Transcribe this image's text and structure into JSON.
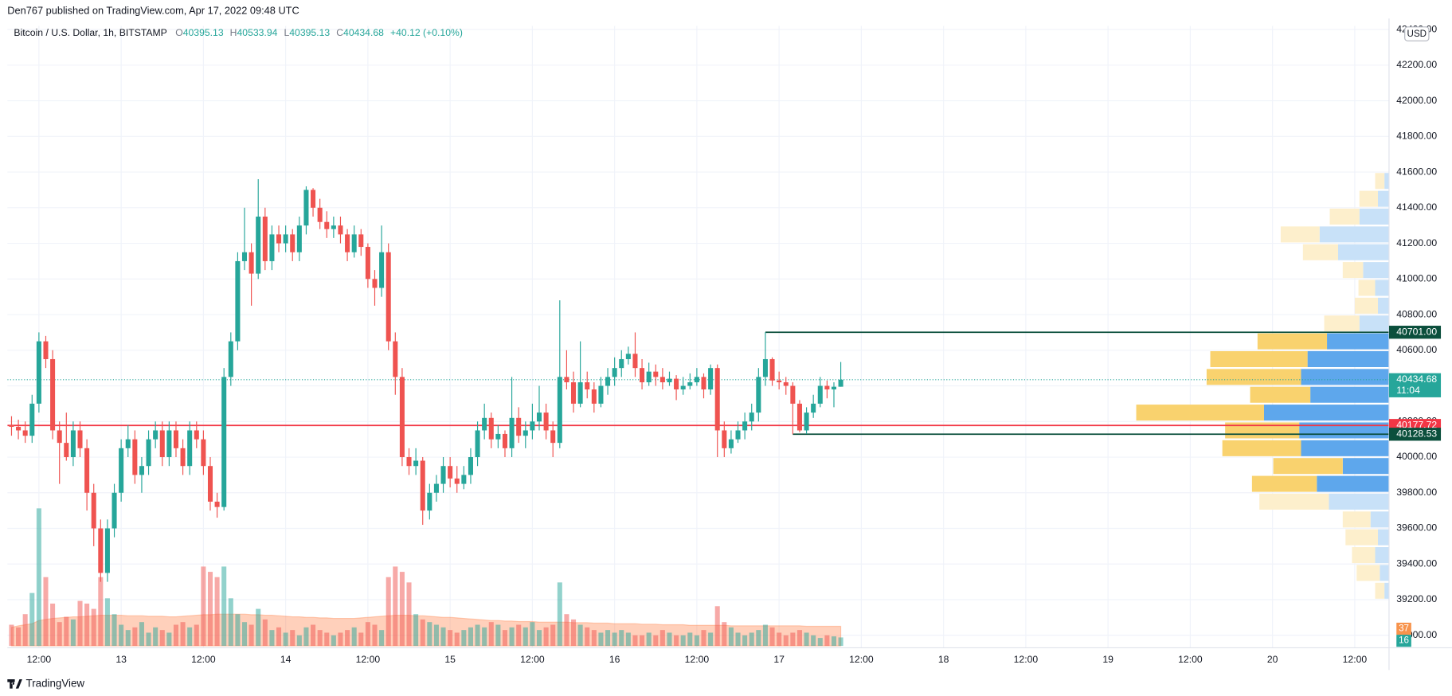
{
  "header": {
    "publisher": "Den767 published on TradingView.com, Apr 17, 2022 09:48 UTC"
  },
  "chart_data": {
    "type": "candlestick",
    "title": "Bitcoin / U.S. Dollar, 1h, BITSTAMP",
    "ohlc_labels": [
      "O",
      "H",
      "L",
      "C"
    ],
    "change": "+40.12 (+0.10%)",
    "currency": "USD",
    "countdown": "11:04",
    "up_color": "#26a69a",
    "down_color": "#ef5350",
    "grid": true,
    "xlim": [
      -0.6,
      201
    ],
    "xticks": [
      {
        "value": 4,
        "label": "12:00"
      },
      {
        "value": 16,
        "label": "13"
      },
      {
        "value": 28,
        "label": "12:00"
      },
      {
        "value": 40,
        "label": "14"
      },
      {
        "value": 52,
        "label": "12:00"
      },
      {
        "value": 64,
        "label": "15"
      },
      {
        "value": 76,
        "label": "12:00"
      },
      {
        "value": 88,
        "label": "16"
      },
      {
        "value": 100,
        "label": "12:00"
      },
      {
        "value": 112,
        "label": "17"
      },
      {
        "value": 124,
        "label": "12:00"
      },
      {
        "value": 136,
        "label": "18"
      },
      {
        "value": 148,
        "label": "12:00"
      },
      {
        "value": 160,
        "label": "19"
      },
      {
        "value": 172,
        "label": "12:00"
      },
      {
        "value": 184,
        "label": "20"
      },
      {
        "value": 196,
        "label": "12:00"
      }
    ],
    "ylim": [
      38930,
      42420
    ],
    "yticks": [
      {
        "value": 39000,
        "label": "39000.00"
      },
      {
        "value": 39200,
        "label": "39200.00"
      },
      {
        "value": 39400,
        "label": "39400.00"
      },
      {
        "value": 39600,
        "label": "39600.00"
      },
      {
        "value": 39800,
        "label": "39800.00"
      },
      {
        "value": 40000,
        "label": "40000.00"
      },
      {
        "value": 40200,
        "label": "40200.00"
      },
      {
        "value": 40400,
        "label": "40400.00"
      },
      {
        "value": 40600,
        "label": "40600.00"
      },
      {
        "value": 40800,
        "label": "40800.00"
      },
      {
        "value": 41000,
        "label": "41000.00"
      },
      {
        "value": 41200,
        "label": "41200.00"
      },
      {
        "value": 41400,
        "label": "41400.00"
      },
      {
        "value": 41600,
        "label": "41600.00"
      },
      {
        "value": 41800,
        "label": "41800.00"
      },
      {
        "value": 42000,
        "label": "42000.00"
      },
      {
        "value": 42200,
        "label": "42200.00"
      },
      {
        "value": 42400,
        "label": "42400.00"
      }
    ],
    "ohlc": [
      [
        40180,
        40230,
        40120,
        40170
      ],
      [
        40170,
        40210,
        40100,
        40150
      ],
      [
        40150,
        40200,
        40080,
        40120
      ],
      [
        40120,
        40350,
        40080,
        40300
      ],
      [
        40300,
        40700,
        40250,
        40650
      ],
      [
        40650,
        40680,
        40500,
        40550
      ],
      [
        40550,
        40600,
        40100,
        40150
      ],
      [
        40150,
        40200,
        39850,
        40080
      ],
      [
        40080,
        40250,
        39980,
        40000
      ],
      [
        40000,
        40200,
        39950,
        40150
      ],
      [
        40150,
        40200,
        40000,
        40050
      ],
      [
        40050,
        40100,
        39700,
        39800
      ],
      [
        39800,
        39850,
        39500,
        39600
      ],
      [
        39600,
        39650,
        39300,
        39350
      ],
      [
        39350,
        39650,
        39300,
        39600
      ],
      [
        39600,
        39850,
        39550,
        39800
      ],
      [
        39800,
        40100,
        39750,
        40050
      ],
      [
        40050,
        40180,
        40000,
        40100
      ],
      [
        40100,
        40150,
        39850,
        39900
      ],
      [
        39900,
        40000,
        39800,
        39950
      ],
      [
        39950,
        40150,
        39900,
        40100
      ],
      [
        40100,
        40200,
        40050,
        40150
      ],
      [
        40150,
        40200,
        39950,
        40000
      ],
      [
        40000,
        40200,
        39950,
        40150
      ],
      [
        40150,
        40200,
        40000,
        40050
      ],
      [
        40050,
        40100,
        39900,
        39950
      ],
      [
        39950,
        40200,
        39900,
        40150
      ],
      [
        40150,
        40200,
        40050,
        40100
      ],
      [
        40100,
        40150,
        39900,
        39950
      ],
      [
        39950,
        40000,
        39700,
        39750
      ],
      [
        39750,
        39800,
        39660,
        39720
      ],
      [
        39720,
        40500,
        39700,
        40450
      ],
      [
        40450,
        40700,
        40400,
        40650
      ],
      [
        40650,
        41150,
        40600,
        41100
      ],
      [
        41100,
        41400,
        41050,
        41150
      ],
      [
        41150,
        41200,
        40850,
        41030
      ],
      [
        41030,
        41560,
        41000,
        41350
      ],
      [
        41350,
        41400,
        41050,
        41100
      ],
      [
        41100,
        41300,
        41050,
        41250
      ],
      [
        41250,
        41300,
        41150,
        41200
      ],
      [
        41200,
        41300,
        41150,
        41250
      ],
      [
        41250,
        41280,
        41100,
        41150
      ],
      [
        41150,
        41350,
        41100,
        41300
      ],
      [
        41300,
        41520,
        41250,
        41500
      ],
      [
        41500,
        41510,
        41350,
        41400
      ],
      [
        41400,
        41450,
        41280,
        41320
      ],
      [
        41320,
        41380,
        41230,
        41280
      ],
      [
        41280,
        41350,
        41230,
        41300
      ],
      [
        41300,
        41350,
        41200,
        41250
      ],
      [
        41250,
        41280,
        41100,
        41150
      ],
      [
        41150,
        41300,
        41120,
        41250
      ],
      [
        41250,
        41280,
        41130,
        41180
      ],
      [
        41180,
        41200,
        40950,
        41000
      ],
      [
        41000,
        41050,
        40850,
        40950
      ],
      [
        40950,
        41300,
        40900,
        41150
      ],
      [
        41150,
        41200,
        40600,
        40650
      ],
      [
        40650,
        40700,
        40350,
        40450
      ],
      [
        40450,
        40500,
        39950,
        40000
      ],
      [
        40000,
        40050,
        39900,
        39950
      ],
      [
        39950,
        40050,
        39900,
        39980
      ],
      [
        39980,
        40000,
        39620,
        39700
      ],
      [
        39700,
        39850,
        39650,
        39800
      ],
      [
        39800,
        39900,
        39750,
        39850
      ],
      [
        39850,
        40000,
        39800,
        39950
      ],
      [
        39950,
        40000,
        39830,
        39880
      ],
      [
        39880,
        39950,
        39800,
        39850
      ],
      [
        39850,
        39950,
        39820,
        39900
      ],
      [
        39900,
        40050,
        39850,
        40000
      ],
      [
        40000,
        40200,
        39950,
        40150
      ],
      [
        40150,
        40300,
        40100,
        40220
      ],
      [
        40220,
        40250,
        40050,
        40100
      ],
      [
        40100,
        40180,
        40050,
        40130
      ],
      [
        40130,
        40150,
        40000,
        40050
      ],
      [
        40050,
        40450,
        40000,
        40220
      ],
      [
        40220,
        40280,
        40080,
        40120
      ],
      [
        40120,
        40200,
        40050,
        40150
      ],
      [
        40150,
        40300,
        40100,
        40200
      ],
      [
        40200,
        40400,
        40150,
        40250
      ],
      [
        40250,
        40300,
        40100,
        40150
      ],
      [
        40150,
        40200,
        40000,
        40080
      ],
      [
        40080,
        40880,
        40050,
        40450
      ],
      [
        40450,
        40600,
        40380,
        40420
      ],
      [
        40420,
        40480,
        40250,
        40300
      ],
      [
        40300,
        40650,
        40280,
        40420
      ],
      [
        40420,
        40480,
        40330,
        40380
      ],
      [
        40380,
        40420,
        40250,
        40300
      ],
      [
        40300,
        40450,
        40280,
        40400
      ],
      [
        40400,
        40500,
        40350,
        40450
      ],
      [
        40450,
        40560,
        40400,
        40500
      ],
      [
        40500,
        40600,
        40450,
        40550
      ],
      [
        40550,
        40620,
        40520,
        40580
      ],
      [
        40580,
        40700,
        40450,
        40500
      ],
      [
        40500,
        40550,
        40380,
        40420
      ],
      [
        40420,
        40530,
        40400,
        40480
      ],
      [
        40480,
        40520,
        40400,
        40450
      ],
      [
        40450,
        40500,
        40380,
        40420
      ],
      [
        40420,
        40480,
        40400,
        40440
      ],
      [
        40440,
        40460,
        40320,
        40380
      ],
      [
        40380,
        40450,
        40350,
        40400
      ],
      [
        40400,
        40470,
        40380,
        40420
      ],
      [
        40420,
        40500,
        40400,
        40450
      ],
      [
        40450,
        40470,
        40330,
        40380
      ],
      [
        40380,
        40520,
        40350,
        40500
      ],
      [
        40500,
        40520,
        40000,
        40150
      ],
      [
        40150,
        40200,
        40000,
        40050
      ],
      [
        40050,
        40150,
        40020,
        40100
      ],
      [
        40100,
        40200,
        40080,
        40150
      ],
      [
        40150,
        40250,
        40100,
        40200
      ],
      [
        40200,
        40300,
        40150,
        40250
      ],
      [
        40250,
        40500,
        40200,
        40450
      ],
      [
        40450,
        40701,
        40400,
        40550
      ],
      [
        40550,
        40560,
        40400,
        40430
      ],
      [
        40430,
        40480,
        40380,
        40420
      ],
      [
        40420,
        40450,
        40350,
        40400
      ],
      [
        40400,
        40420,
        40128.53,
        40300
      ],
      [
        40300,
        40320,
        40140,
        40150
      ],
      [
        40150,
        40280,
        40130,
        40250
      ],
      [
        40250,
        40350,
        40220,
        40300
      ],
      [
        40300,
        40450,
        40280,
        40400
      ],
      [
        40400,
        40430,
        40330,
        40380
      ],
      [
        40380,
        40420,
        40280,
        40395.13
      ],
      [
        40395.13,
        40533.94,
        40395.13,
        40434.68
      ]
    ],
    "volume": [
      40,
      35,
      60,
      100,
      260,
      130,
      80,
      45,
      55,
      50,
      85,
      80,
      70,
      130,
      90,
      60,
      40,
      30,
      35,
      45,
      25,
      35,
      30,
      25,
      40,
      45,
      35,
      40,
      150,
      140,
      130,
      150,
      90,
      60,
      45,
      40,
      70,
      50,
      30,
      35,
      25,
      30,
      20,
      35,
      40,
      30,
      25,
      20,
      25,
      30,
      35,
      25,
      45,
      40,
      30,
      130,
      150,
      140,
      120,
      60,
      50,
      45,
      40,
      35,
      30,
      25,
      30,
      35,
      40,
      35,
      45,
      40,
      30,
      35,
      40,
      35,
      45,
      30,
      35,
      40,
      120,
      60,
      50,
      40,
      35,
      30,
      25,
      30,
      25,
      30,
      25,
      20,
      20,
      25,
      20,
      30,
      25,
      20,
      20,
      25,
      20,
      30,
      25,
      75,
      45,
      35,
      25,
      20,
      25,
      30,
      40,
      35,
      25,
      20,
      25,
      30,
      25,
      20,
      15,
      20,
      18,
      16
    ],
    "volume_ma": [
      35,
      38,
      40,
      42,
      48,
      50,
      52,
      53,
      54,
      55,
      55,
      56,
      57,
      58,
      58,
      58,
      58,
      57,
      57,
      57,
      56,
      56,
      56,
      55,
      55,
      56,
      57,
      58,
      59,
      59,
      60,
      60,
      60,
      60,
      60,
      59,
      59,
      58,
      58,
      57,
      56,
      55,
      55,
      54,
      54,
      53,
      53,
      52,
      52,
      52,
      52,
      53,
      54,
      55,
      56,
      57,
      58,
      58,
      58,
      57,
      57,
      56,
      55,
      54,
      54,
      53,
      52,
      51,
      50,
      49,
      48,
      48,
      47,
      47,
      46,
      46,
      46,
      45,
      45,
      45,
      45,
      45,
      44,
      44,
      44,
      43,
      43,
      43,
      42,
      42,
      42,
      42,
      41,
      41,
      41,
      40,
      40,
      40,
      40,
      39,
      39,
      39,
      39,
      39,
      39,
      38,
      38,
      38,
      38,
      38,
      38,
      38,
      38,
      38,
      38,
      38,
      37,
      37,
      37,
      37,
      37,
      37
    ],
    "volume_profile": {
      "bins": [
        39200,
        39300,
        39400,
        39500,
        39600,
        39700,
        39800,
        39900,
        40000,
        40100,
        40200,
        40300,
        40400,
        40500,
        40600,
        40700,
        40800,
        40900,
        41000,
        41100,
        41200,
        41300,
        41400,
        41500,
        41600
      ],
      "up": [
        5,
        10,
        15,
        12,
        20,
        65,
        78,
        50,
        95,
        97,
        135,
        85,
        95,
        88,
        67,
        32,
        12,
        15,
        28,
        55,
        75,
        32,
        12,
        5
      ],
      "down": [
        10,
        25,
        25,
        35,
        30,
        75,
        70,
        75,
        85,
        80,
        138,
        65,
        102,
        105,
        75,
        38,
        25,
        18,
        22,
        38,
        42,
        32,
        20,
        10
      ],
      "value_area": [
        39800,
        40700
      ],
      "colors": {
        "up": "#5ea7ec",
        "down": "#f9d26e",
        "up_outside": "#c8e1f8",
        "down_outside": "#fdefcc"
      }
    },
    "price_lines": [
      {
        "value": 40701,
        "label": "40701.00",
        "start": 110,
        "color": "#0b4f3c"
      },
      {
        "value": 40177.72,
        "color": "#f23645"
      },
      {
        "value": 40128.53,
        "start": 114,
        "color": "#0b4f3c"
      }
    ]
  },
  "footer": {
    "brand": "TradingView"
  }
}
